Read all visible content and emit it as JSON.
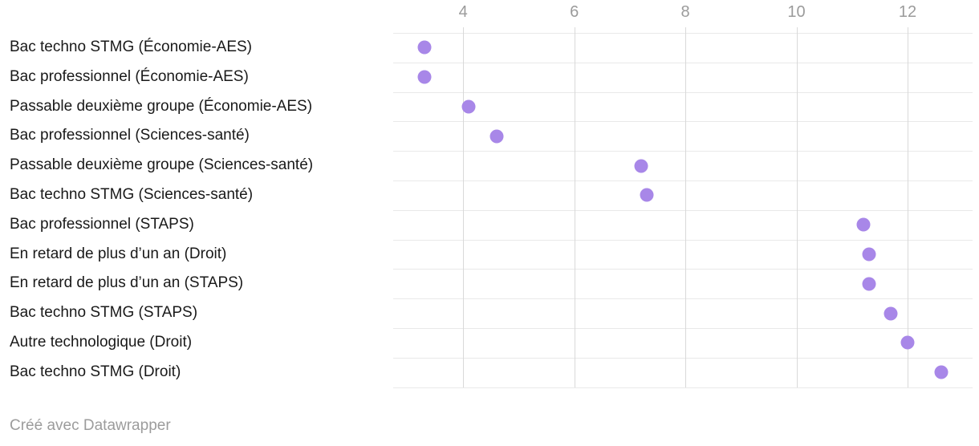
{
  "chart_data": {
    "type": "scatter",
    "variant": "horizontal-dot-plot",
    "title": "",
    "xlabel": "",
    "ylabel": "",
    "categories": [
      "Bac techno STMG (Économie-AES)",
      "Bac professionnel (Économie-AES)",
      "Passable deuxième groupe (Économie-AES)",
      "Bac professionnel (Sciences-santé)",
      "Passable deuxième groupe (Sciences-santé)",
      "Bac techno STMG (Sciences-santé)",
      "Bac professionnel (STAPS)",
      "En retard de plus d’un an (Droit)",
      "En retard de plus d’un an (STAPS)",
      "Bac techno STMG (STAPS)",
      "Autre technologique (Droit)",
      "Bac techno STMG (Droit)"
    ],
    "values": [
      3.3,
      3.3,
      4.1,
      4.6,
      7.2,
      7.3,
      11.2,
      11.3,
      11.3,
      11.7,
      12.0,
      12.6
    ],
    "x_ticks": [
      4,
      6,
      8,
      10,
      12
    ],
    "xlim": [
      2.74,
      13.17
    ],
    "grid": true,
    "legend": "none",
    "dot_color": "#a887e8",
    "tick_color": "#9b9b9b",
    "label_color": "#191919",
    "vgrid_color": "#d9d9d9",
    "hgrid_color": "#e9e9e9"
  },
  "footer": {
    "credit": "Créé avec Datawrapper"
  }
}
